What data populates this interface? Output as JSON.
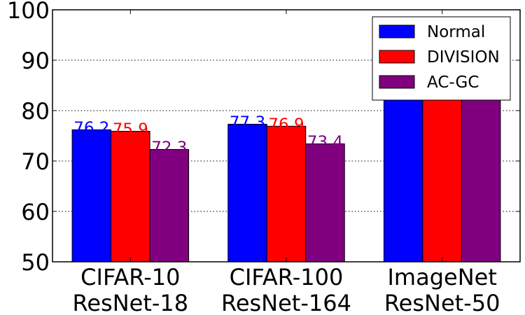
{
  "chart_data": {
    "type": "bar",
    "categories": [
      [
        "CIFAR-10",
        "ResNet-18"
      ],
      [
        "CIFAR-100",
        "ResNet-164"
      ],
      [
        "ImageNet",
        "ResNet-50"
      ]
    ],
    "series": [
      {
        "name": "Normal",
        "color": "#0000ff",
        "values": [
          76.2,
          77.3,
          90.5
        ],
        "labels": [
          "76.2",
          "77.3",
          ""
        ]
      },
      {
        "name": "DIVISION",
        "color": "#ff0000",
        "values": [
          75.9,
          76.9,
          90.5
        ],
        "labels": [
          "75.9",
          "76.9",
          ""
        ]
      },
      {
        "name": "AC-GC",
        "color": "#800080",
        "values": [
          72.3,
          73.4,
          90.5
        ],
        "labels": [
          "72.3",
          "73.4",
          ""
        ]
      }
    ],
    "label_colors": [
      "#0000ff",
      "#ff0000",
      "#800080"
    ],
    "ylim": [
      50,
      100
    ],
    "yticks": [
      "50",
      "60",
      "70",
      "80",
      "90",
      "100"
    ],
    "grid": "horizontal dotted",
    "legend_position": "top-right"
  }
}
